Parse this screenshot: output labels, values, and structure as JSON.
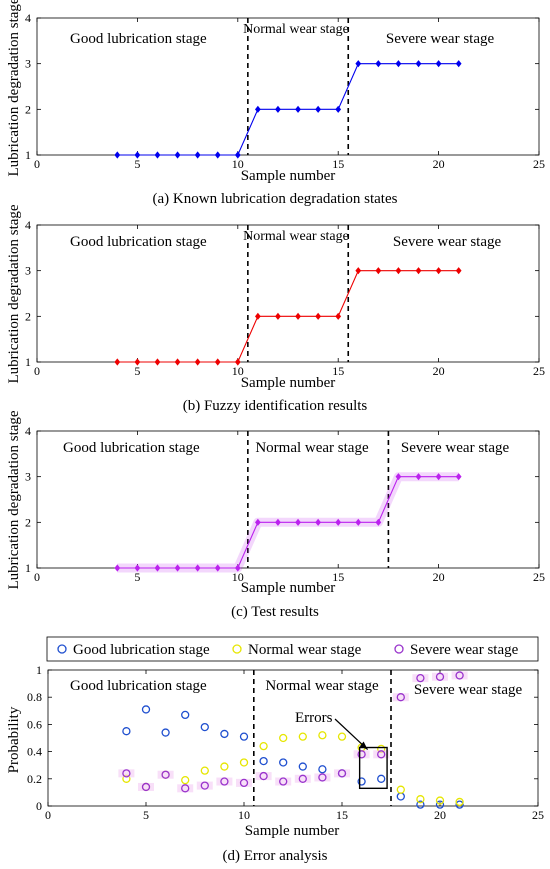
{
  "chart_data": [
    {
      "type": "line",
      "caption": "(a) Known lubrication degradation states",
      "xlabel": "Sample number",
      "ylabel": "Lubrication degradation stage",
      "xlim": [
        0,
        25
      ],
      "ylim": [
        1,
        4
      ],
      "xticks": [
        0,
        5,
        10,
        15,
        20,
        25
      ],
      "yticks": [
        1,
        2,
        3,
        4
      ],
      "stage_labels": [
        "Good lubrication stage",
        "Normal wear stage",
        "Severe wear stage"
      ],
      "boundaries": [
        10.5,
        15.5
      ],
      "color": "#0000ee",
      "band": false,
      "x": [
        4,
        5,
        6,
        7,
        8,
        9,
        10,
        11,
        12,
        13,
        14,
        15,
        16,
        17,
        18,
        19,
        20,
        21
      ],
      "y": [
        1,
        1,
        1,
        1,
        1,
        1,
        1,
        2,
        2,
        2,
        2,
        2,
        3,
        3,
        3,
        3,
        3,
        3
      ]
    },
    {
      "type": "line",
      "caption": "(b) Fuzzy identification results",
      "xlabel": "Sample number",
      "ylabel": "Lubrication degradation stage",
      "xlim": [
        0,
        25
      ],
      "ylim": [
        1,
        4
      ],
      "xticks": [
        0,
        5,
        10,
        15,
        20,
        25
      ],
      "yticks": [
        1,
        2,
        3,
        4
      ],
      "stage_labels": [
        "Good lubrication stage",
        "Normal wear stage",
        "Severe wear stage"
      ],
      "boundaries": [
        10.5,
        15.5
      ],
      "color": "#ee0000",
      "band": false,
      "x": [
        4,
        5,
        6,
        7,
        8,
        9,
        10,
        11,
        12,
        13,
        14,
        15,
        16,
        17,
        18,
        19,
        20,
        21
      ],
      "y": [
        1,
        1,
        1,
        1,
        1,
        1,
        1,
        2,
        2,
        2,
        2,
        2,
        3,
        3,
        3,
        3,
        3,
        3
      ]
    },
    {
      "type": "line",
      "caption": "(c) Test results",
      "xlabel": "Sample number",
      "ylabel": "Lubrication degradation stage",
      "xlim": [
        0,
        25
      ],
      "ylim": [
        1,
        4
      ],
      "xticks": [
        0,
        5,
        10,
        15,
        20,
        25
      ],
      "yticks": [
        1,
        2,
        3,
        4
      ],
      "stage_labels": [
        "Good lubrication stage",
        "Normal wear stage",
        "Severe wear stage"
      ],
      "boundaries": [
        10.5,
        17.5
      ],
      "color": "#bb22ee",
      "band": true,
      "x": [
        4,
        5,
        6,
        7,
        8,
        9,
        10,
        11,
        12,
        13,
        14,
        15,
        16,
        17,
        18,
        19,
        20,
        21
      ],
      "y": [
        1,
        1,
        1,
        1,
        1,
        1,
        1,
        2,
        2,
        2,
        2,
        2,
        2,
        2,
        3,
        3,
        3,
        3
      ]
    },
    {
      "type": "scatter",
      "caption": "(d) Error analysis",
      "xlabel": "Sample number",
      "ylabel": "Probability",
      "xlim": [
        0,
        25
      ],
      "ylim": [
        0,
        1
      ],
      "xticks": [
        0,
        5,
        10,
        15,
        20,
        25
      ],
      "yticks": [
        0,
        0.2,
        0.4,
        0.6,
        0.8,
        1
      ],
      "stage_labels": [
        "Good lubrication stage",
        "Normal wear stage",
        "Severe wear stage"
      ],
      "boundaries": [
        10.5,
        17.5
      ],
      "annotation": "Errors",
      "error_box": {
        "x": [
          15.9,
          17.3
        ],
        "y": [
          0.13,
          0.43
        ]
      },
      "x": [
        4,
        5,
        6,
        7,
        8,
        9,
        10,
        11,
        12,
        13,
        14,
        15,
        16,
        17,
        18,
        19,
        20,
        21
      ],
      "series": [
        {
          "name": "Good lubrication stage",
          "color": "#1f4fcf",
          "values": [
            0.55,
            0.71,
            0.54,
            0.67,
            0.58,
            0.53,
            0.51,
            0.33,
            0.32,
            0.29,
            0.27,
            0.24,
            0.18,
            0.2,
            0.07,
            0.01,
            0.01,
            0.01
          ]
        },
        {
          "name": "Normal wear stage",
          "color": "#e6e600",
          "values": [
            0.2,
            0.14,
            0.23,
            0.19,
            0.26,
            0.29,
            0.32,
            0.44,
            0.5,
            0.51,
            0.52,
            0.51,
            0.43,
            0.42,
            0.12,
            0.05,
            0.04,
            0.03
          ]
        },
        {
          "name": "Severe wear stage",
          "color": "#9933cc",
          "values": [
            0.24,
            0.14,
            0.23,
            0.13,
            0.15,
            0.18,
            0.17,
            0.22,
            0.18,
            0.2,
            0.21,
            0.24,
            0.38,
            0.38,
            0.8,
            0.94,
            0.95,
            0.96
          ]
        }
      ]
    }
  ]
}
